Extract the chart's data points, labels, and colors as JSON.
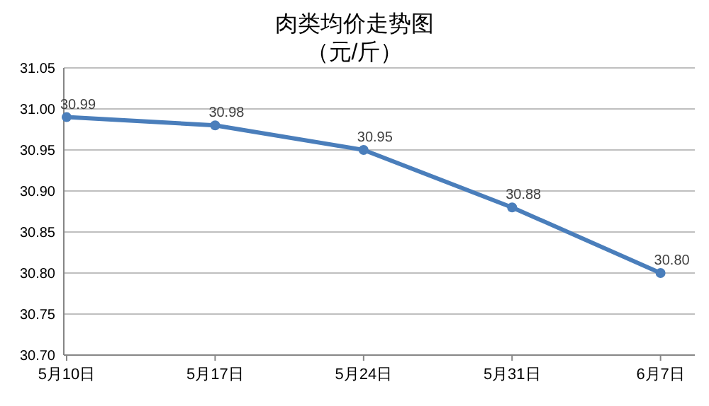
{
  "chart_data": {
    "type": "line",
    "title": "肉类均价走势图",
    "subtitle": "（元/斤）",
    "categories": [
      "5月10日",
      "5月17日",
      "5月24日",
      "5月31日",
      "6月7日"
    ],
    "series": [
      {
        "color": "#4a7ebb",
        "values": [
          30.99,
          30.98,
          30.95,
          30.88,
          30.8
        ]
      }
    ],
    "ylim": [
      30.7,
      31.05
    ],
    "yticks": [
      {
        "value": 30.7,
        "label": "30.70"
      },
      {
        "value": 30.75,
        "label": "30.75"
      },
      {
        "value": 30.8,
        "label": "30.80"
      },
      {
        "value": 30.85,
        "label": "30.85"
      },
      {
        "value": 30.9,
        "label": "30.90"
      },
      {
        "value": 30.95,
        "label": "30.95"
      },
      {
        "value": 31.0,
        "label": "31.00"
      },
      {
        "value": 31.05,
        "label": "31.05"
      }
    ],
    "value_labels": [
      "30.99",
      "30.98",
      "30.95",
      "30.88",
      "30.80"
    ],
    "grid": "y",
    "marker": "circle",
    "line_style": "solid"
  }
}
